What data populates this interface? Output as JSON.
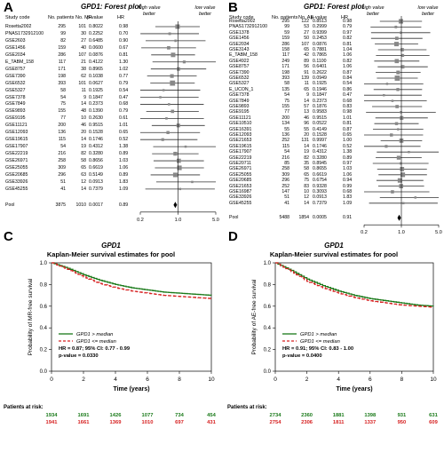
{
  "panels": {
    "A": {
      "label": "A",
      "title": "GPD1: Forest plot"
    },
    "B": {
      "label": "B",
      "title": "GPD1: Forest plot"
    },
    "C": {
      "label": "C",
      "gene": "GPD1",
      "subtitle": "Kaplan-Meier survival estimates for pool"
    },
    "D": {
      "label": "D",
      "gene": "GPD1",
      "subtitle": "Kaplan-Meier survival estimates for pool"
    }
  },
  "chart_data": [
    {
      "type": "forest",
      "title": "GPD1: Forest plot",
      "columns": [
        "Study code",
        "No. patients",
        "No. MR",
        "p-value",
        "HR"
      ],
      "annotation_high": "high value better",
      "annotation_low": "low value better",
      "xscale": "log",
      "xticks": [
        0.2,
        1.0,
        5.0
      ],
      "studies": [
        {
          "code": "Rosetta2002",
          "n": "295",
          "events": "101",
          "p": "0.8022",
          "hr": "0.98"
        },
        {
          "code": "PNAS1732912100",
          "n": "99",
          "events": "30",
          "p": "0.2252",
          "hr": "0.70"
        },
        {
          "code": "GSE2603",
          "n": "82",
          "events": "27",
          "p": "0.6485",
          "hr": "0.90"
        },
        {
          "code": "GSE1456",
          "n": "159",
          "events": "40",
          "p": "0.0600",
          "hr": "0.67"
        },
        {
          "code": "GSE2034",
          "n": "286",
          "events": "107",
          "p": "0.0876",
          "hr": "0.81"
        },
        {
          "code": "E_TABM_158",
          "n": "117",
          "events": "21",
          "p": "0.4122",
          "hr": "1.30"
        },
        {
          "code": "GSE8757",
          "n": "171",
          "events": "38",
          "p": "0.8965",
          "hr": "1.02"
        },
        {
          "code": "GSE7390",
          "n": "198",
          "events": "62",
          "p": "0.1038",
          "hr": "0.77"
        },
        {
          "code": "GSE6532",
          "n": "393",
          "events": "101",
          "p": "0.0627",
          "hr": "0.79"
        },
        {
          "code": "GSE5327",
          "n": "58",
          "events": "11",
          "p": "0.1925",
          "hr": "0.54"
        },
        {
          "code": "GSE7378",
          "n": "54",
          "events": "9",
          "p": "0.1847",
          "hr": "0.47"
        },
        {
          "code": "GSE7849",
          "n": "75",
          "events": "14",
          "p": "0.2373",
          "hr": "0.68"
        },
        {
          "code": "GSE9893",
          "n": "155",
          "events": "48",
          "p": "0.1390",
          "hr": "0.79"
        },
        {
          "code": "GSE9195",
          "n": "77",
          "events": "10",
          "p": "0.2630",
          "hr": "0.61"
        },
        {
          "code": "GSE11121",
          "n": "200",
          "events": "46",
          "p": "0.9515",
          "hr": "1.01"
        },
        {
          "code": "GSE12093",
          "n": "136",
          "events": "20",
          "p": "0.1528",
          "hr": "0.65"
        },
        {
          "code": "GSE19615",
          "n": "115",
          "events": "14",
          "p": "0.1746",
          "hr": "0.52"
        },
        {
          "code": "GSE17907",
          "n": "54",
          "events": "19",
          "p": "0.4312",
          "hr": "1.38"
        },
        {
          "code": "GSE22219",
          "n": "216",
          "events": "82",
          "p": "0.3280",
          "hr": "0.89"
        },
        {
          "code": "GSE26971",
          "n": "258",
          "events": "58",
          "p": "0.8656",
          "hr": "1.03"
        },
        {
          "code": "GSE25055",
          "n": "309",
          "events": "65",
          "p": "0.6619",
          "hr": "1.06"
        },
        {
          "code": "GSE20685",
          "n": "296",
          "events": "63",
          "p": "0.5149",
          "hr": "0.89"
        },
        {
          "code": "GSE33926",
          "n": "51",
          "events": "12",
          "p": "0.0913",
          "hr": "1.83"
        },
        {
          "code": "GSE45255",
          "n": "41",
          "events": "14",
          "p": "0.7379",
          "hr": "1.09"
        }
      ],
      "pool": {
        "code": "Pool",
        "n": "3875",
        "events": "1010",
        "p": "0.0017",
        "hr": "0.89"
      }
    },
    {
      "type": "forest",
      "title": "GPD1: Forest plot",
      "columns": [
        "Study code",
        "No. patients",
        "No. AE",
        "p-value",
        "HR"
      ],
      "annotation_high": "high value better",
      "annotation_low": "low value better",
      "xscale": "log",
      "xticks": [
        0.2,
        1.0,
        5.0
      ],
      "studies": [
        {
          "code": "Rosetta2002",
          "n": "295",
          "events": "122",
          "p": "0.8513",
          "hr": "0.98"
        },
        {
          "code": "PNAS1732912100",
          "n": "99",
          "events": "53",
          "p": "0.2999",
          "hr": "0.79"
        },
        {
          "code": "GSE1378",
          "n": "59",
          "events": "27",
          "p": "0.9399",
          "hr": "0.97"
        },
        {
          "code": "GSE1456",
          "n": "159",
          "events": "50",
          "p": "0.2453",
          "hr": "0.82"
        },
        {
          "code": "GSE2034",
          "n": "286",
          "events": "107",
          "p": "0.0876",
          "hr": "0.81"
        },
        {
          "code": "GSE3143",
          "n": "158",
          "events": "65",
          "p": "0.7881",
          "hr": "1.04"
        },
        {
          "code": "E_TABM_158",
          "n": "117",
          "events": "42",
          "p": "0.7865",
          "hr": "1.06"
        },
        {
          "code": "GSE4922",
          "n": "249",
          "events": "89",
          "p": "0.1100",
          "hr": "0.82"
        },
        {
          "code": "GSE8757",
          "n": "171",
          "events": "56",
          "p": "0.6401",
          "hr": "1.06"
        },
        {
          "code": "GSE7390",
          "n": "198",
          "events": "91",
          "p": "0.2622",
          "hr": "0.87"
        },
        {
          "code": "GSE6532",
          "n": "393",
          "events": "139",
          "p": "0.0949",
          "hr": "0.84"
        },
        {
          "code": "GSE5327",
          "n": "58",
          "events": "11",
          "p": "0.1925",
          "hr": "0.54"
        },
        {
          "code": "E_UCON_1",
          "n": "135",
          "events": "65",
          "p": "0.1946",
          "hr": "0.86"
        },
        {
          "code": "GSE7378",
          "n": "54",
          "events": "9",
          "p": "0.1847",
          "hr": "0.47"
        },
        {
          "code": "GSE7849",
          "n": "75",
          "events": "14",
          "p": "0.2373",
          "hr": "0.68"
        },
        {
          "code": "GSE9893",
          "n": "155",
          "events": "57",
          "p": "0.1876",
          "hr": "0.83"
        },
        {
          "code": "GSE9195",
          "n": "77",
          "events": "13",
          "p": "0.9583",
          "hr": "0.98"
        },
        {
          "code": "GSE11121",
          "n": "200",
          "events": "46",
          "p": "0.9515",
          "hr": "1.01"
        },
        {
          "code": "GSE10510",
          "n": "134",
          "events": "96",
          "p": "0.0522",
          "hr": "0.81"
        },
        {
          "code": "GSE16391",
          "n": "55",
          "events": "55",
          "p": "0.4149",
          "hr": "0.87"
        },
        {
          "code": "GSE12093",
          "n": "136",
          "events": "20",
          "p": "0.1528",
          "hr": "0.65"
        },
        {
          "code": "GSE21653",
          "n": "252",
          "events": "131",
          "p": "0.9997",
          "hr": "1.00"
        },
        {
          "code": "GSE19615",
          "n": "115",
          "events": "14",
          "p": "0.1746",
          "hr": "0.52"
        },
        {
          "code": "GSE17907",
          "n": "54",
          "events": "19",
          "p": "0.4312",
          "hr": "1.38"
        },
        {
          "code": "GSE22219",
          "n": "216",
          "events": "82",
          "p": "0.3280",
          "hr": "0.89"
        },
        {
          "code": "GSE20711",
          "n": "85",
          "events": "35",
          "p": "0.8945",
          "hr": "0.97"
        },
        {
          "code": "GSE26971",
          "n": "258",
          "events": "58",
          "p": "0.8655",
          "hr": "1.03"
        },
        {
          "code": "GSE25055",
          "n": "309",
          "events": "65",
          "p": "0.6619",
          "hr": "1.06"
        },
        {
          "code": "GSE20685",
          "n": "296",
          "events": "75",
          "p": "0.6754",
          "hr": "0.94"
        },
        {
          "code": "GSE21653",
          "n": "252",
          "events": "83",
          "p": "0.9328",
          "hr": "0.99"
        },
        {
          "code": "GSE16987",
          "n": "147",
          "events": "10",
          "p": "0.3093",
          "hr": "0.68"
        },
        {
          "code": "GSE33926",
          "n": "51",
          "events": "12",
          "p": "0.0913",
          "hr": "1.83"
        },
        {
          "code": "GSE45255",
          "n": "41",
          "events": "14",
          "p": "0.7379",
          "hr": "1.09"
        }
      ],
      "pool": {
        "code": "Pool",
        "n": "5488",
        "events": "1854",
        "p": "0.0005",
        "hr": "0.91"
      }
    },
    {
      "type": "line",
      "title": "GPD1",
      "subtitle": "Kaplan-Meier survival estimates for pool",
      "xlabel": "Time (years)",
      "ylabel": "Probability of MR-free survival",
      "xlim": [
        0,
        10
      ],
      "ylim": [
        0,
        1
      ],
      "xticks": [
        0,
        2,
        4,
        6,
        8,
        10
      ],
      "yticks": [
        0.0,
        0.2,
        0.4,
        0.6,
        0.8,
        1.0
      ],
      "series": [
        {
          "name": "GPD1 > median",
          "x": [
            0,
            1,
            2,
            3,
            4,
            5,
            6,
            7,
            8,
            9,
            10
          ],
          "values": [
            1,
            0.95,
            0.89,
            0.84,
            0.8,
            0.77,
            0.75,
            0.73,
            0.72,
            0.71,
            0.7
          ],
          "color": "#1a7a1a"
        },
        {
          "name": "GPD1 <= median",
          "x": [
            0,
            1,
            2,
            3,
            4,
            5,
            6,
            7,
            8,
            9,
            10
          ],
          "values": [
            1,
            0.94,
            0.87,
            0.81,
            0.77,
            0.74,
            0.72,
            0.7,
            0.69,
            0.68,
            0.67
          ],
          "color": "#d62020"
        }
      ],
      "stats": [
        "HR = 0.87; 95% CI: 0.77 - 0.99",
        "p-value = 0.0330"
      ],
      "risk_label": "Patients at risk:",
      "risk": [
        {
          "color": "#1a7a1a",
          "values": [
            "1934",
            "1691",
            "1426",
            "1077",
            "734",
            "454"
          ]
        },
        {
          "color": "#d62020",
          "values": [
            "1941",
            "1661",
            "1369",
            "1010",
            "697",
            "431"
          ]
        }
      ]
    },
    {
      "type": "line",
      "title": "GPD1",
      "subtitle": "Kaplan-Meier survival estimates for pool",
      "xlabel": "Time (years)",
      "ylabel": "Probability of AE-free survival",
      "xlim": [
        0,
        10
      ],
      "ylim": [
        0,
        1
      ],
      "xticks": [
        0,
        2,
        4,
        6,
        8,
        10
      ],
      "yticks": [
        0.0,
        0.2,
        0.4,
        0.6,
        0.8,
        1.0
      ],
      "series": [
        {
          "name": "GPD1 > median",
          "x": [
            0,
            1,
            2,
            3,
            4,
            5,
            6,
            7,
            8,
            9,
            10
          ],
          "values": [
            1,
            0.93,
            0.85,
            0.79,
            0.74,
            0.7,
            0.67,
            0.65,
            0.63,
            0.61,
            0.6
          ],
          "color": "#1a7a1a"
        },
        {
          "name": "GPD1 <= median",
          "x": [
            0,
            1,
            2,
            3,
            4,
            5,
            6,
            7,
            8,
            9,
            10
          ],
          "values": [
            1,
            0.92,
            0.83,
            0.77,
            0.72,
            0.68,
            0.65,
            0.63,
            0.61,
            0.6,
            0.59
          ],
          "color": "#d62020"
        }
      ],
      "stats": [
        "HR = 0.91; 95% CI: 0.83 - 1.00",
        "p-value = 0.0400"
      ],
      "risk_label": "Patients at risk:",
      "risk": [
        {
          "color": "#1a7a1a",
          "values": [
            "2734",
            "2360",
            "1881",
            "1398",
            "931",
            "631"
          ]
        },
        {
          "color": "#d62020",
          "values": [
            "2754",
            "2306",
            "1811",
            "1337",
            "950",
            "609"
          ]
        }
      ]
    }
  ]
}
